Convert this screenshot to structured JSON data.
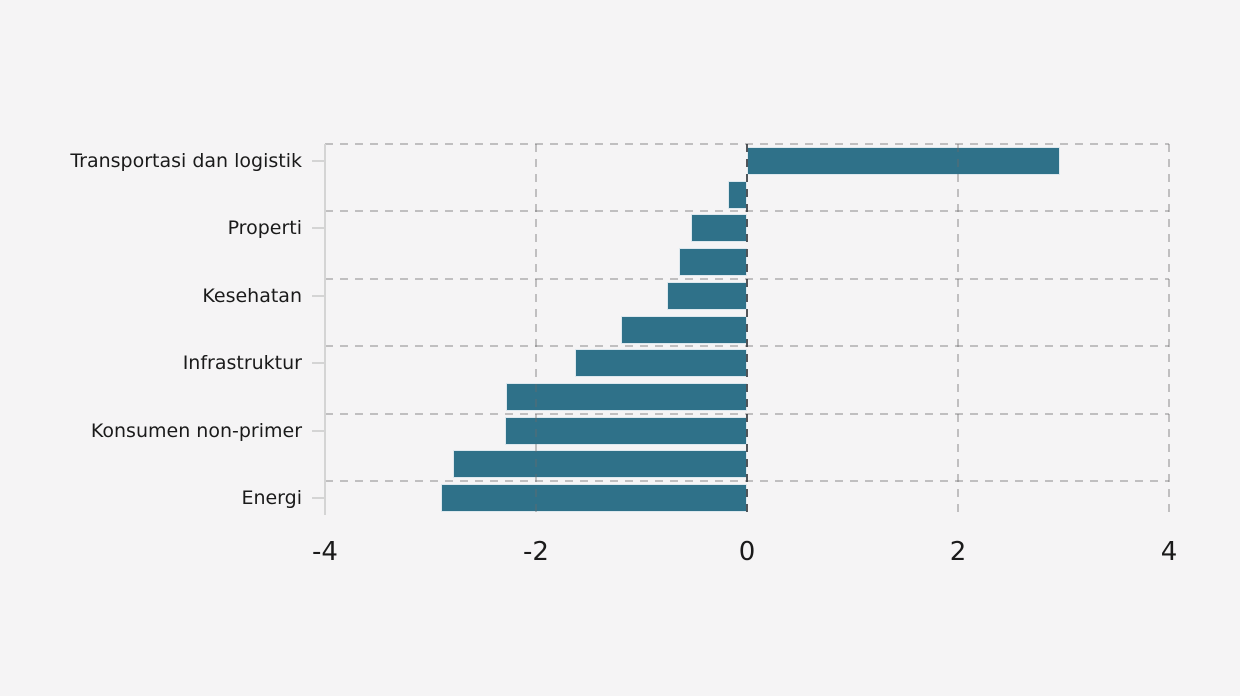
{
  "figure": {
    "background_color": "#f5f4f5",
    "text_color": "#1a1a1a"
  },
  "chart_data": {
    "type": "bar",
    "orientation": "horizontal",
    "title": "",
    "subtitle": "",
    "xlabel": "",
    "ylabel": "",
    "xlim": [
      -4,
      4
    ],
    "x_ticks": [
      -4,
      -2,
      0,
      2,
      4
    ],
    "x_tick_labels": [
      "-4",
      "-2",
      "0",
      "2",
      "4"
    ],
    "grid": "dashed",
    "legend": null,
    "categories": [
      "Transportasi dan logistik",
      "",
      "Properti",
      "",
      "Kesehatan",
      "",
      "Infrastruktur",
      "",
      "Konsumen non-primer",
      "",
      "Energi"
    ],
    "values": [
      2.97,
      -0.18,
      -0.53,
      -0.64,
      -0.76,
      -1.19,
      -1.63,
      -2.28,
      -2.29,
      -2.79,
      -2.9
    ],
    "labeled_row_indices": [
      0,
      2,
      4,
      6,
      8,
      10
    ],
    "gridline_row_boundaries": [
      0,
      2,
      4,
      6,
      8,
      10
    ],
    "colors": {
      "bar": "#2f7189",
      "bar_edge": "#dde8ee",
      "grid": "rgba(105,105,105,0.38)",
      "zero_line": "rgba(42,47,52,0.80)",
      "spine": "#d4d4d4",
      "tick": "#d4d4d4",
      "text": "#1a1a1a"
    }
  }
}
